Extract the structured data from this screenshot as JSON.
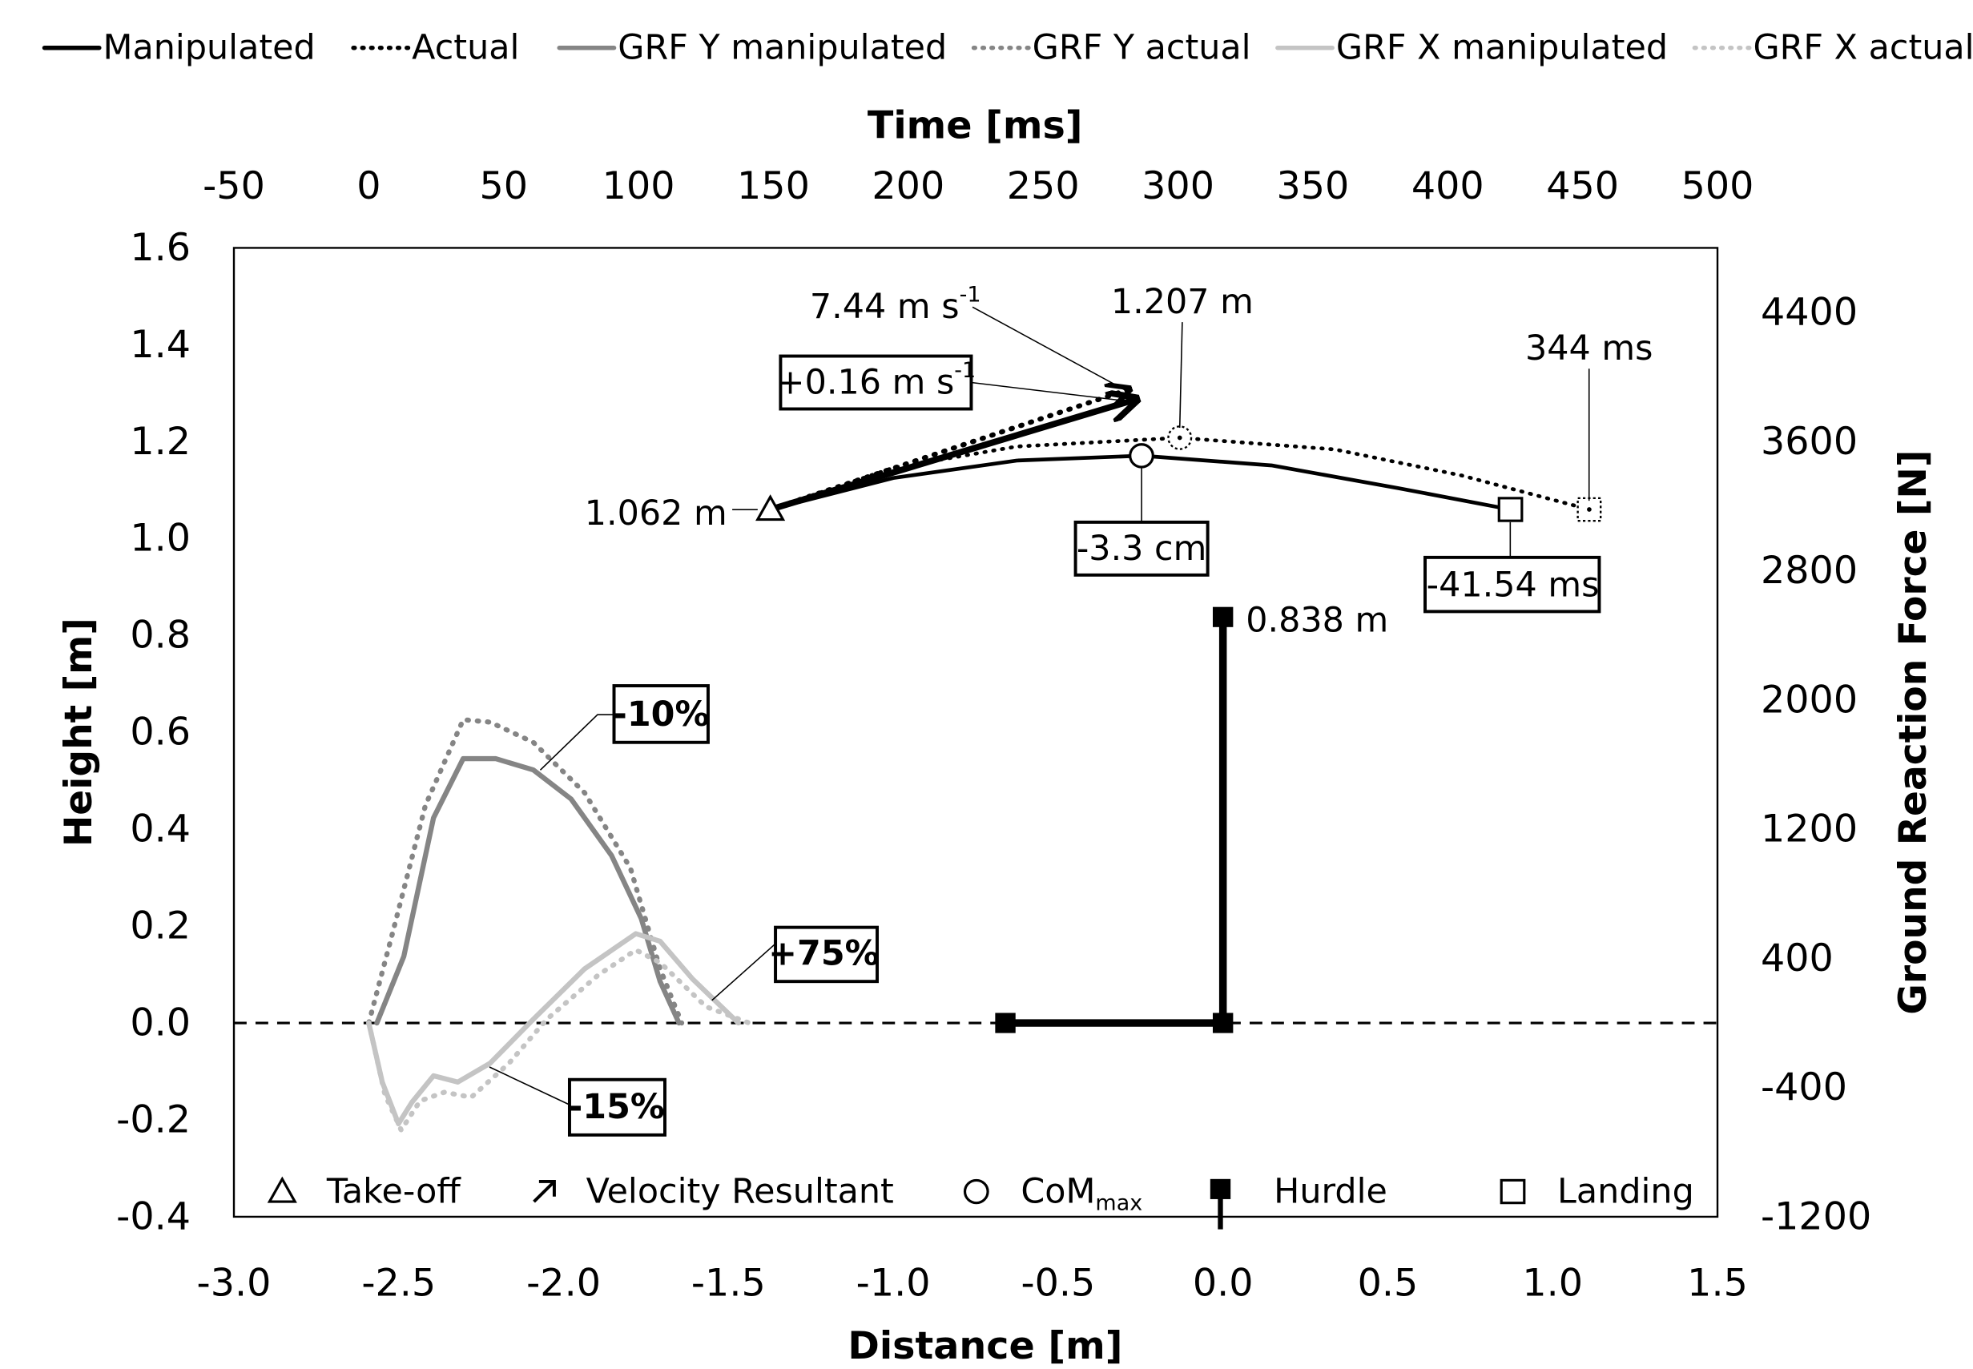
{
  "chart_data": {
    "type": "line",
    "x2_label": "Time [ms]",
    "x_label": "Distance [m]",
    "y_label": "Height [m]",
    "y2_label": "Ground Reaction Force [N]",
    "xlim": [
      -3,
      1.5
    ],
    "xticks": [
      {
        "value": -3,
        "label": "-3.0"
      },
      -2.5,
      {
        "value": -2,
        "label": "-2.0"
      },
      -1.5,
      {
        "value": -1,
        "label": "-1.0"
      },
      -0.5,
      {
        "value": 0,
        "label": "0.0"
      },
      0.5,
      {
        "value": 1,
        "label": "1.0"
      },
      1.5
    ],
    "x2lim": [
      -50,
      500
    ],
    "x2ticks": [
      -50,
      0,
      50,
      100,
      150,
      200,
      250,
      300,
      350,
      400,
      450,
      500
    ],
    "ylim": [
      -0.4,
      1.6
    ],
    "yticks": [
      -0.4,
      -0.2,
      {
        "value": 0,
        "label": "0.0"
      },
      0.2,
      0.4,
      0.6,
      0.8,
      {
        "value": 1,
        "label": "1.0"
      },
      1.2,
      1.4,
      1.6
    ],
    "y2lim": [
      -1200,
      4800
    ],
    "y2ticks": [
      -1200,
      -400,
      400,
      1200,
      2000,
      2800,
      3600,
      4400
    ],
    "series": [
      {
        "name": "Manipulated",
        "color": "#000000",
        "style": "solid",
        "x": [
          -1.373,
          -1.0,
          -0.625,
          -0.247,
          0.147,
          0.532,
          0.872
        ],
        "values": [
          1.06,
          1.125,
          1.161,
          1.171,
          1.151,
          1.104,
          1.06
        ]
      },
      {
        "name": "Actual",
        "color": "#000000",
        "style": "dotted",
        "x": [
          -1.373,
          -1.0,
          -0.625,
          -0.131,
          0.339,
          0.725,
          1.111
        ],
        "values": [
          1.06,
          1.146,
          1.19,
          1.208,
          1.184,
          1.13,
          1.06
        ]
      },
      {
        "name": "GRF Y manipulated",
        "color": "#858585",
        "style": "solid",
        "axis": "y2",
        "x_axis": "x2",
        "x": [
          3,
          13,
          24,
          35,
          47,
          61,
          75,
          90,
          101,
          108,
          115
        ],
        "values": [
          0,
          413,
          1270,
          1637,
          1637,
          1567,
          1387,
          1037,
          647,
          257,
          0
        ]
      },
      {
        "name": "GRF Y actual",
        "color": "#858585",
        "style": "dotted",
        "axis": "y2",
        "x_axis": "x2",
        "x": [
          0,
          9,
          21,
          35,
          45,
          61,
          80,
          97,
          108,
          116
        ],
        "values": [
          0,
          569,
          1348,
          1878,
          1863,
          1738,
          1426,
          959,
          335,
          0
        ]
      },
      {
        "name": "GRF X manipulated",
        "color": "#c4c4c4",
        "style": "solid",
        "axis": "y2",
        "x_axis": "x2",
        "x": [
          0,
          5,
          11,
          16,
          24,
          33,
          45,
          61,
          80,
          99,
          108,
          120,
          137
        ],
        "values": [
          0,
          -366,
          -624,
          -491,
          -327,
          -366,
          -249,
          23,
          335,
          553,
          506,
          273,
          0
        ]
      },
      {
        "name": "GRF X actual",
        "color": "#c4c4c4",
        "style": "dotted",
        "axis": "y2",
        "x_axis": "x2",
        "x": [
          0,
          6,
          12,
          19,
          28,
          38,
          52,
          66,
          85,
          99,
          108,
          125,
          141
        ],
        "values": [
          0,
          -444,
          -663,
          -483,
          -429,
          -460,
          -249,
          23,
          296,
          452,
          374,
          101,
          0
        ]
      }
    ],
    "velocity": [
      {
        "style": "solid",
        "x": [
          -1.373,
          -0.27
        ],
        "values": [
          1.06,
          1.286
        ]
      },
      {
        "style": "dotted",
        "x": [
          -1.373,
          -0.29
        ],
        "values": [
          1.06,
          1.307
        ]
      }
    ],
    "hurdle": {
      "x": [
        -0.66,
        0,
        0
      ],
      "values": [
        0,
        0,
        0.838
      ]
    },
    "markers": [
      {
        "shape": "triangle",
        "style": "solid",
        "x": -1.373,
        "y": 1.06
      },
      {
        "shape": "circle",
        "style": "solid",
        "x": -0.247,
        "y": 1.171
      },
      {
        "shape": "circle",
        "style": "dotted",
        "x": -0.131,
        "y": 1.208
      },
      {
        "shape": "square",
        "style": "solid",
        "x": 0.872,
        "y": 1.06
      },
      {
        "shape": "square",
        "style": "dotted",
        "x": 1.111,
        "y": 1.06
      }
    ],
    "annotations": [
      {
        "text": "7.44 m s",
        "sup": "-1"
      },
      {
        "text": "+0.16 m s",
        "sup": "-1"
      },
      {
        "text": "1.207 m"
      },
      {
        "text": "344 ms"
      },
      {
        "text": "1.062 m"
      },
      {
        "text": "-3.3 cm"
      },
      {
        "text": "-41.54 ms"
      },
      {
        "text": "0.838 m"
      },
      {
        "text": "-10%"
      },
      {
        "text": "+75%"
      },
      {
        "text": "-15%"
      }
    ],
    "marker_legend": [
      {
        "shape": "triangle",
        "label": "Take-off"
      },
      {
        "shape": "arrow",
        "label": "Velocity Resultant"
      },
      {
        "shape": "circle",
        "label": "CoM",
        "sub": "max"
      },
      {
        "shape": "hurdle",
        "label": "Hurdle"
      },
      {
        "shape": "square",
        "label": "Landing"
      }
    ]
  }
}
